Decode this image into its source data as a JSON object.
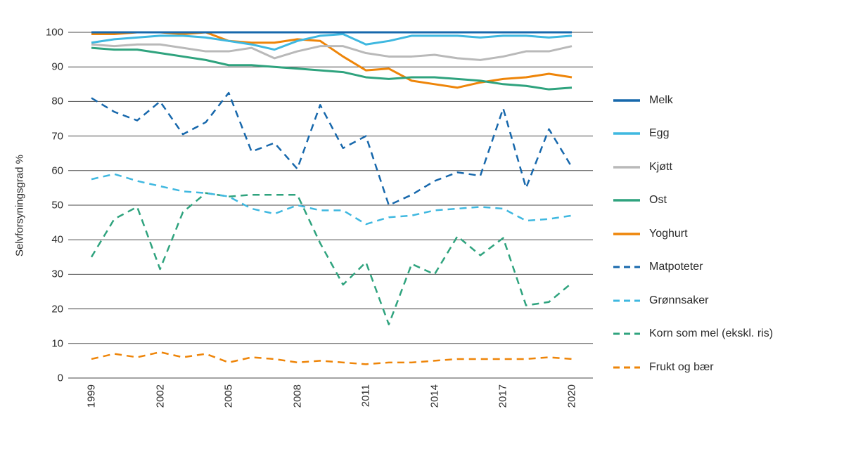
{
  "chart_data": {
    "type": "line",
    "title": "",
    "ylabel": "Selvforsyningsgrad %",
    "xlabel": "",
    "grid": "horizontal",
    "legend_position": "right",
    "ylim": [
      0,
      100
    ],
    "y_ticks": [
      0,
      10,
      20,
      30,
      40,
      50,
      60,
      70,
      80,
      90,
      100
    ],
    "x": [
      1999,
      2000,
      2001,
      2002,
      2003,
      2004,
      2005,
      2006,
      2007,
      2008,
      2009,
      2010,
      2011,
      2012,
      2013,
      2014,
      2015,
      2016,
      2017,
      2018,
      2019,
      2020
    ],
    "x_tick_labels": [
      "1999",
      "2002",
      "2005",
      "2008",
      "2011",
      "2014",
      "2017",
      "2020"
    ],
    "colors": {
      "dark_blue": "#1768ac",
      "light_blue": "#3fb8e0",
      "gray": "#b9b9b9",
      "green": "#2fa37e",
      "orange": "#ee8509",
      "gridline": "#4a4a4a"
    },
    "series": [
      {
        "name": "Melk",
        "color": "#1768ac",
        "style": "solid",
        "values": [
          100,
          100,
          100,
          100,
          100,
          100,
          100,
          100,
          100,
          100,
          100,
          100,
          100,
          100,
          100,
          100,
          100,
          100,
          100,
          100,
          100,
          100
        ]
      },
      {
        "name": "Egg",
        "color": "#3fb8e0",
        "style": "solid",
        "values": [
          97,
          98,
          98.5,
          99,
          99,
          98.5,
          97.5,
          96.5,
          95,
          97.5,
          99,
          99.5,
          96.5,
          97.5,
          99,
          99,
          99,
          98.5,
          99,
          99,
          98.5,
          99
        ]
      },
      {
        "name": "Kjøtt",
        "color": "#b9b9b9",
        "style": "solid",
        "values": [
          96.5,
          96,
          96.5,
          96.5,
          95.5,
          94.5,
          94.5,
          95.5,
          92.5,
          94.5,
          96,
          96,
          94,
          93,
          93,
          93.5,
          92.5,
          92,
          93,
          94.5,
          94.5,
          96
        ]
      },
      {
        "name": "Ost",
        "color": "#2fa37e",
        "style": "solid",
        "values": [
          95.5,
          95,
          95,
          94,
          93,
          92,
          90.5,
          90.5,
          90,
          89.5,
          89,
          88.5,
          87,
          86.5,
          87,
          87,
          86.5,
          86,
          85,
          84.5,
          83.5,
          84
        ]
      },
      {
        "name": "Yoghurt",
        "color": "#ee8509",
        "style": "solid",
        "values": [
          99.5,
          99.5,
          100,
          100,
          99.5,
          100,
          97.5,
          97,
          97,
          98,
          97.5,
          93,
          89,
          89.5,
          86,
          85,
          84,
          85.5,
          86.5,
          87,
          88,
          87
        ]
      },
      {
        "name": "Matpoteter",
        "color": "#1768ac",
        "style": "dashed",
        "values": [
          81,
          77,
          74.5,
          80,
          70.5,
          74,
          82.5,
          65.5,
          68,
          60.5,
          79,
          66.5,
          70,
          50,
          53,
          57,
          59.5,
          58.5,
          78,
          55,
          72,
          61
        ]
      },
      {
        "name": "Grønnsaker",
        "color": "#3fb8e0",
        "style": "dashed",
        "values": [
          57.5,
          59,
          57,
          55.5,
          54,
          53.5,
          52.5,
          49,
          47.5,
          50,
          48.5,
          48.5,
          44.5,
          46.5,
          47,
          48.5,
          49,
          49.5,
          49,
          45.5,
          46,
          47
        ]
      },
      {
        "name": "Korn som mel (ekskl. ris)",
        "color": "#2fa37e",
        "style": "dashed",
        "values": [
          35,
          46,
          49.5,
          31.5,
          48,
          53.5,
          52.5,
          53,
          53,
          53,
          39,
          27,
          33.5,
          15.5,
          33,
          30,
          41,
          35.5,
          40.5,
          21,
          22,
          27.5
        ]
      },
      {
        "name": "Frukt og bær",
        "color": "#ee8509",
        "style": "dashed",
        "values": [
          5.5,
          7,
          6,
          7.5,
          6,
          7,
          4.5,
          6,
          5.5,
          4.5,
          5,
          4.5,
          4,
          4.5,
          4.5,
          5,
          5.5,
          5.5,
          5.5,
          5.5,
          6,
          5.5
        ]
      }
    ]
  }
}
